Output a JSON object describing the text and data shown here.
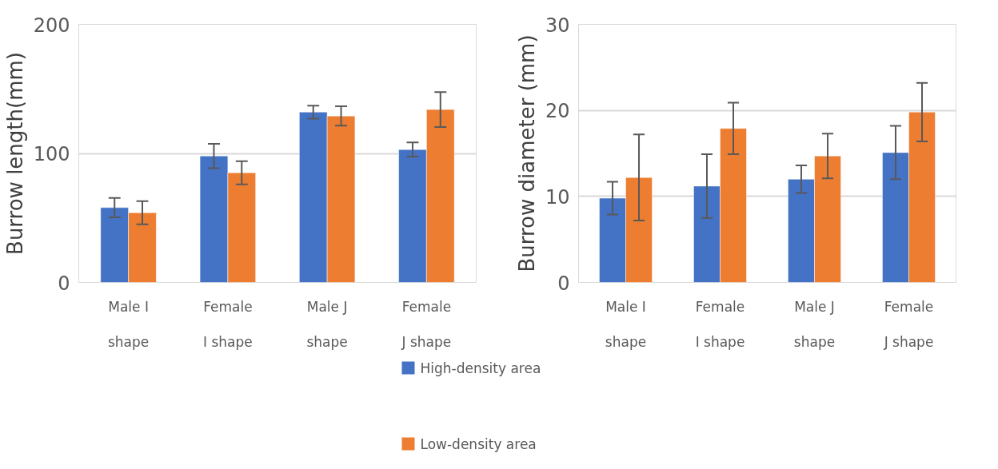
{
  "chart_data": [
    {
      "type": "bar",
      "ylabel": "Burrow length(mm)",
      "categories": [
        "Male I shape",
        "Female I shape",
        "Male J shape",
        "Female J shape"
      ],
      "ylim": [
        0,
        200
      ],
      "yticks": [
        0,
        100,
        200
      ],
      "grid": "y",
      "legend": "bottom",
      "series": [
        {
          "name": "High-density area",
          "color": "#4472c4",
          "values": [
            58,
            98,
            132,
            103
          ],
          "errors": [
            7.5,
            9.5,
            5,
            5.5
          ]
        },
        {
          "name": "Low-density area",
          "color": "#ed7d31",
          "values": [
            54,
            85,
            129,
            134
          ],
          "errors": [
            9,
            9,
            7.5,
            13.5
          ]
        }
      ]
    },
    {
      "type": "bar",
      "ylabel": "Burrow diameter (mm)",
      "categories": [
        "Male I shape",
        "Female I shape",
        "Male J shape",
        "Female J shape"
      ],
      "ylim": [
        0,
        30
      ],
      "yticks": [
        0,
        10,
        20,
        30
      ],
      "grid": "y",
      "series": [
        {
          "color": "#4472c4",
          "values": [
            9.8,
            11.2,
            12.0,
            15.1
          ],
          "errors": [
            1.9,
            3.7,
            1.6,
            3.1
          ]
        },
        {
          "color": "#ed7d31",
          "values": [
            12.2,
            17.9,
            14.7,
            19.8
          ],
          "errors": [
            5,
            3,
            2.6,
            3.4
          ]
        }
      ]
    }
  ]
}
